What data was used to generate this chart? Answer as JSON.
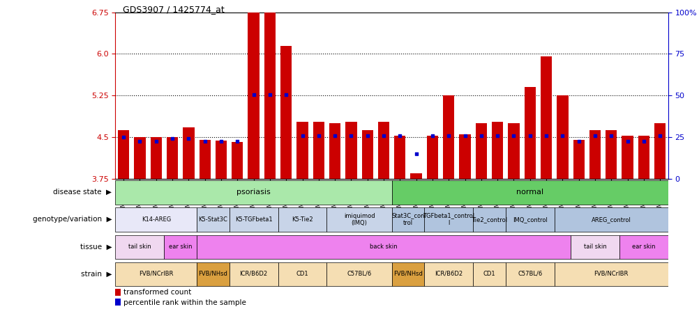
{
  "title": "GDS3907 / 1425774_at",
  "samples": [
    "GSM684694",
    "GSM684695",
    "GSM684696",
    "GSM684688",
    "GSM684689",
    "GSM684690",
    "GSM684700",
    "GSM684701",
    "GSM684704",
    "GSM684705",
    "GSM684706",
    "GSM684676",
    "GSM684677",
    "GSM684678",
    "GSM684682",
    "GSM684683",
    "GSM684684",
    "GSM684702",
    "GSM684703",
    "GSM684707",
    "GSM684708",
    "GSM684709",
    "GSM684679",
    "GSM684680",
    "GSM684681",
    "GSM684685",
    "GSM684686",
    "GSM684687",
    "GSM684697",
    "GSM684698",
    "GSM684699",
    "GSM684691",
    "GSM684692",
    "GSM684693"
  ],
  "bar_heights": [
    4.62,
    4.5,
    4.5,
    4.5,
    4.68,
    4.45,
    4.43,
    4.41,
    6.75,
    6.75,
    6.15,
    4.78,
    4.78,
    4.75,
    4.78,
    4.62,
    4.78,
    4.52,
    3.85,
    4.52,
    5.25,
    4.55,
    4.75,
    4.78,
    4.75,
    5.4,
    5.95,
    5.25,
    4.45,
    4.62,
    4.62,
    4.52,
    4.52,
    4.75
  ],
  "percentile_values": [
    4.5,
    4.42,
    4.42,
    4.47,
    4.47,
    4.42,
    4.42,
    4.42,
    5.26,
    5.26,
    5.26,
    4.52,
    4.52,
    4.52,
    4.52,
    4.52,
    4.52,
    4.52,
    4.2,
    4.52,
    4.52,
    4.52,
    4.52,
    4.52,
    4.52,
    4.52,
    4.52,
    4.52,
    4.42,
    4.52,
    4.52,
    4.42,
    4.42,
    4.52
  ],
  "ymin": 3.75,
  "ymax": 6.75,
  "yticks": [
    3.75,
    4.5,
    5.25,
    6.0,
    6.75
  ],
  "right_yticks": [
    0,
    25,
    50,
    75,
    100
  ],
  "right_yticklabels": [
    "0",
    "25",
    "50",
    "75",
    "100%"
  ],
  "bar_color": "#cc0000",
  "blue_color": "#0000cc",
  "genotype_groups": [
    {
      "label": "K14-AREG",
      "start": 0,
      "end": 5,
      "color": "#e8e8f8"
    },
    {
      "label": "K5-Stat3C",
      "start": 5,
      "end": 7,
      "color": "#c8d4e8"
    },
    {
      "label": "K5-TGFbeta1",
      "start": 7,
      "end": 10,
      "color": "#c8d4e8"
    },
    {
      "label": "K5-Tie2",
      "start": 10,
      "end": 13,
      "color": "#c8d4e8"
    },
    {
      "label": "imiquimod\n(IMQ)",
      "start": 13,
      "end": 17,
      "color": "#c8d4e8"
    },
    {
      "label": "Stat3C_con\ntrol",
      "start": 17,
      "end": 19,
      "color": "#b0c4de"
    },
    {
      "label": "TGFbeta1_control\nl",
      "start": 19,
      "end": 22,
      "color": "#b0c4de"
    },
    {
      "label": "Tie2_control",
      "start": 22,
      "end": 24,
      "color": "#b0c4de"
    },
    {
      "label": "IMQ_control",
      "start": 24,
      "end": 27,
      "color": "#b0c4de"
    },
    {
      "label": "AREG_control",
      "start": 27,
      "end": 34,
      "color": "#b0c4de"
    }
  ],
  "tissue_groups": [
    {
      "label": "tail skin",
      "start": 0,
      "end": 3,
      "color": "#f0d8f0"
    },
    {
      "label": "ear skin",
      "start": 3,
      "end": 5,
      "color": "#ee82ee"
    },
    {
      "label": "back skin",
      "start": 5,
      "end": 28,
      "color": "#ee82ee"
    },
    {
      "label": "tail skin",
      "start": 28,
      "end": 31,
      "color": "#f0d8f0"
    },
    {
      "label": "ear skin",
      "start": 31,
      "end": 34,
      "color": "#ee82ee"
    }
  ],
  "strain_groups": [
    {
      "label": "FVB/NCrIBR",
      "start": 0,
      "end": 5,
      "color": "#f5deb3"
    },
    {
      "label": "FVB/NHsd",
      "start": 5,
      "end": 7,
      "color": "#daa040"
    },
    {
      "label": "ICR/B6D2",
      "start": 7,
      "end": 10,
      "color": "#f5deb3"
    },
    {
      "label": "CD1",
      "start": 10,
      "end": 13,
      "color": "#f5deb3"
    },
    {
      "label": "C57BL/6",
      "start": 13,
      "end": 17,
      "color": "#f5deb3"
    },
    {
      "label": "FVB/NHsd",
      "start": 17,
      "end": 19,
      "color": "#daa040"
    },
    {
      "label": "ICR/B6D2",
      "start": 19,
      "end": 22,
      "color": "#f5deb3"
    },
    {
      "label": "CD1",
      "start": 22,
      "end": 24,
      "color": "#f5deb3"
    },
    {
      "label": "C57BL/6",
      "start": 24,
      "end": 27,
      "color": "#f5deb3"
    },
    {
      "label": "FVB/NCrIBR",
      "start": 27,
      "end": 34,
      "color": "#f5deb3"
    }
  ],
  "row_labels": [
    "disease state",
    "genotype/variation",
    "tissue",
    "strain"
  ],
  "psoriasis_color": "#aae8aa",
  "normal_color": "#66cc66"
}
